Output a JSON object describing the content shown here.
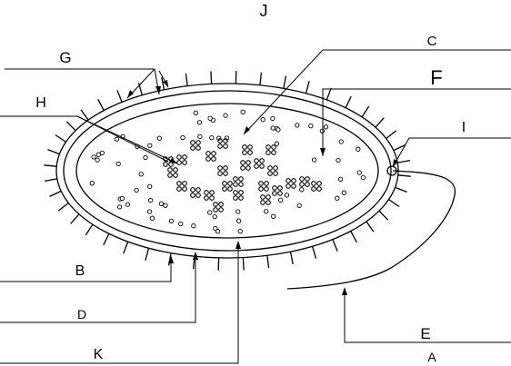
{
  "labels": {
    "A": "A",
    "B": "B",
    "C": "C",
    "D": "D",
    "E": "E",
    "F": "F",
    "G": "G",
    "H": "H",
    "I": "I",
    "J": "J",
    "K": "K"
  }
}
